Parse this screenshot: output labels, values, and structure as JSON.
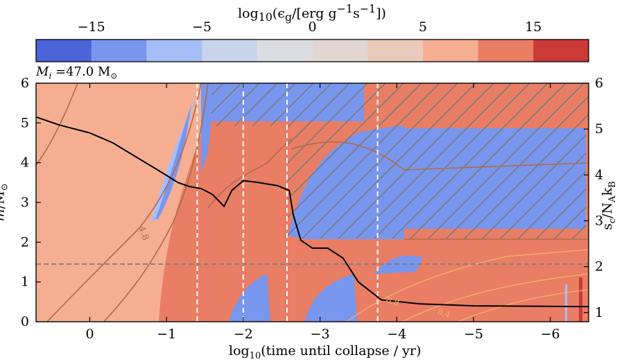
{
  "chart_data": {
    "type": "heatmap",
    "colorbar": {
      "label_html": "log<sub>10</sub>(&#x3f5;<sub>g</sub>/[erg g<sup>&#x2212;1</sup>s<sup>&#x2212;1</sup>])",
      "label_text": "log10(εg/[erg g−1s−1])",
      "tick_labels": [
        "−15",
        "−5",
        "0",
        "5",
        "15"
      ],
      "levels": 10,
      "colors": [
        "#4a63d6",
        "#7896ee",
        "#a4bff8",
        "#c7d4ec",
        "#dcdde2",
        "#e2d6d0",
        "#eccabb",
        "#f5ae92",
        "#e97e64",
        "#cb3a37"
      ]
    },
    "annotation": "M_i = 47.0 M_⊙",
    "annotation_parts": {
      "symbol": "M",
      "sub": "i",
      "rest": " =47.0 M",
      "solar": "⊙"
    },
    "x_label": "log10(time until collapse / yr)",
    "x_ticks": [
      {
        "value": 0,
        "label": "0"
      },
      {
        "value": -1,
        "label": "−1"
      },
      {
        "value": -2,
        "label": "−2"
      },
      {
        "value": -3,
        "label": "−3"
      },
      {
        "value": -4,
        "label": "−4"
      },
      {
        "value": -5,
        "label": "−5"
      },
      {
        "value": -6,
        "label": "−6"
      }
    ],
    "x_range": [
      0.7,
      -6.5
    ],
    "y_label": "m/M_⊙",
    "y_range": [
      0,
      6
    ],
    "y_ticks": [
      0,
      1,
      2,
      3,
      4,
      5,
      6
    ],
    "y2_label": "s_c/N_A k_B",
    "y2_range": [
      0.8,
      6
    ],
    "y2_ticks": [
      1,
      2,
      3,
      4,
      5,
      6
    ],
    "vertical_dashed_lines_x": [
      -1.4,
      -2.0,
      -2.57,
      -3.75
    ],
    "horizontal_dashed_line_y": 1.45,
    "central_entropy_line": [
      [
        0.7,
        5.15
      ],
      [
        0.4,
        4.95
      ],
      [
        0.0,
        4.75
      ],
      [
        -0.3,
        4.5
      ],
      [
        -0.6,
        4.15
      ],
      [
        -0.9,
        3.8
      ],
      [
        -1.15,
        3.5
      ],
      [
        -1.3,
        3.4
      ],
      [
        -1.45,
        3.35
      ],
      [
        -1.6,
        3.2
      ],
      [
        -1.75,
        2.9
      ],
      [
        -1.85,
        3.3
      ],
      [
        -2.0,
        3.55
      ],
      [
        -2.2,
        3.5
      ],
      [
        -2.45,
        3.42
      ],
      [
        -2.6,
        3.3
      ],
      [
        -2.65,
        2.7
      ],
      [
        -2.75,
        2.05
      ],
      [
        -2.9,
        1.85
      ],
      [
        -3.1,
        1.85
      ],
      [
        -3.3,
        1.6
      ],
      [
        -3.5,
        1.0
      ],
      [
        -3.8,
        0.55
      ],
      [
        -4.3,
        0.45
      ],
      [
        -5.0,
        0.4
      ],
      [
        -6.5,
        0.38
      ]
    ],
    "contour_labels": [
      "4.8",
      "8.4",
      "8.8"
    ]
  }
}
